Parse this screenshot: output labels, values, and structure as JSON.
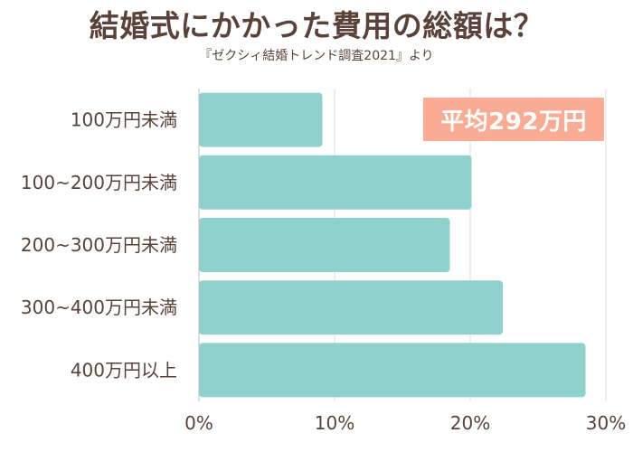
{
  "title": "結婚式にかかった費用の総額は？",
  "subtitle": "『ゼクシィ結婚トレンド調査2021』より",
  "badge": "平均292万円",
  "colors": {
    "bar": "#8fd1cc",
    "badge": "#f9ab94",
    "text": "#5a4238",
    "grid": "#dcdcdc"
  },
  "chart_data": {
    "type": "bar",
    "orientation": "horizontal",
    "categories": [
      "100万円未満",
      "100~200万円未満",
      "200~300万円未満",
      "300~400万円未満",
      "400万円以上"
    ],
    "values": [
      9.1,
      20.1,
      18.5,
      22.4,
      28.5
    ],
    "x_ticks": [
      "0%",
      "10%",
      "20%",
      "30%"
    ],
    "xlim": [
      0,
      30
    ],
    "grid": true
  }
}
